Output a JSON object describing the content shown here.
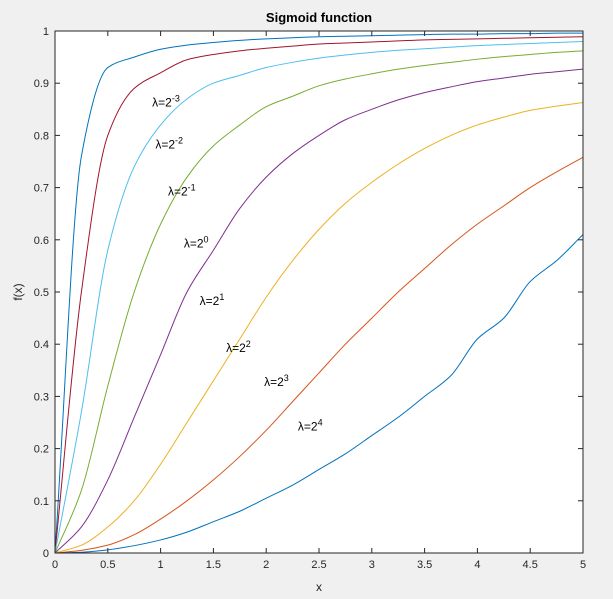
{
  "chart_data": {
    "type": "line",
    "title": "Sigmoid function",
    "xlabel": "x",
    "ylabel": "f(x)",
    "xlim": [
      0,
      5
    ],
    "ylim": [
      0,
      1
    ],
    "grid": false,
    "xticks": [
      "0",
      "0.5",
      "1",
      "1.5",
      "2",
      "2.5",
      "3",
      "3.5",
      "4",
      "4.5",
      "5"
    ],
    "yticks": [
      "0",
      "0.1",
      "0.2",
      "0.3",
      "0.4",
      "0.5",
      "0.6",
      "0.7",
      "0.8",
      "0.9",
      "1"
    ],
    "x": [
      0,
      0.25,
      0.5,
      0.75,
      1,
      1.25,
      1.5,
      1.75,
      2,
      2.25,
      2.5,
      2.75,
      3,
      3.25,
      3.5,
      3.75,
      4,
      4.25,
      4.5,
      4.75,
      5
    ],
    "series": [
      {
        "label_base": "λ=2",
        "label_exp": "-3",
        "color": "#0072BD",
        "values": [
          0,
          0.76,
          0.93,
          0.95,
          0.965,
          0.973,
          0.978,
          0.982,
          0.985,
          0.987,
          0.989,
          0.99,
          0.991,
          0.992,
          0.993,
          0.994,
          0.994,
          0.995,
          0.995,
          0.996,
          0.996
        ]
      },
      {
        "label_base": "λ=2",
        "label_exp": "-2",
        "color": "#A2142F",
        "values": [
          0,
          0.5,
          0.8,
          0.89,
          0.92,
          0.945,
          0.955,
          0.962,
          0.967,
          0.971,
          0.975,
          0.977,
          0.979,
          0.981,
          0.983,
          0.984,
          0.985,
          0.986,
          0.987,
          0.988,
          0.989
        ]
      },
      {
        "label_base": "λ=2",
        "label_exp": "-1",
        "color": "#4DBEEE",
        "values": [
          0,
          0.27,
          0.58,
          0.74,
          0.82,
          0.87,
          0.9,
          0.915,
          0.93,
          0.94,
          0.948,
          0.954,
          0.959,
          0.963,
          0.966,
          0.969,
          0.972,
          0.974,
          0.976,
          0.978,
          0.98
        ]
      },
      {
        "label_base": "λ=2",
        "label_exp": "0",
        "color": "#77AC30",
        "values": [
          0,
          0.12,
          0.32,
          0.5,
          0.63,
          0.72,
          0.78,
          0.82,
          0.855,
          0.875,
          0.895,
          0.908,
          0.918,
          0.927,
          0.934,
          0.94,
          0.946,
          0.951,
          0.955,
          0.959,
          0.962
        ]
      },
      {
        "label_base": "λ=2",
        "label_exp": "1",
        "color": "#7E2F8E",
        "values": [
          0,
          0.05,
          0.14,
          0.26,
          0.38,
          0.5,
          0.58,
          0.66,
          0.72,
          0.765,
          0.8,
          0.83,
          0.85,
          0.868,
          0.882,
          0.893,
          0.903,
          0.91,
          0.917,
          0.922,
          0.927
        ]
      },
      {
        "label_base": "λ=2",
        "label_exp": "2",
        "color": "#EDB120",
        "values": [
          0,
          0.015,
          0.05,
          0.1,
          0.17,
          0.25,
          0.33,
          0.41,
          0.49,
          0.56,
          0.62,
          0.67,
          0.71,
          0.745,
          0.775,
          0.8,
          0.82,
          0.835,
          0.848,
          0.856,
          0.863
        ]
      },
      {
        "label_base": "λ=2",
        "label_exp": "3",
        "color": "#D95319",
        "values": [
          0,
          0.005,
          0.015,
          0.035,
          0.065,
          0.1,
          0.14,
          0.185,
          0.235,
          0.29,
          0.345,
          0.4,
          0.45,
          0.5,
          0.545,
          0.59,
          0.63,
          0.665,
          0.7,
          0.73,
          0.758
        ]
      },
      {
        "label_base": "λ=2",
        "label_exp": "4",
        "color": "#0072BD",
        "values": [
          0,
          0.0015,
          0.006,
          0.014,
          0.025,
          0.04,
          0.06,
          0.08,
          0.105,
          0.13,
          0.16,
          0.19,
          0.225,
          0.26,
          0.3,
          0.34,
          0.41,
          0.45,
          0.52,
          0.56,
          0.61
        ]
      }
    ],
    "curve_labels": [
      {
        "series": 0,
        "x": 0.92,
        "y": 0.855
      },
      {
        "series": 1,
        "x": 0.95,
        "y": 0.775
      },
      {
        "series": 2,
        "x": 1.07,
        "y": 0.685
      },
      {
        "series": 3,
        "x": 1.22,
        "y": 0.585
      },
      {
        "series": 4,
        "x": 1.37,
        "y": 0.475
      },
      {
        "series": 5,
        "x": 1.62,
        "y": 0.385
      },
      {
        "series": 6,
        "x": 1.98,
        "y": 0.32
      },
      {
        "series": 7,
        "x": 2.3,
        "y": 0.235
      }
    ]
  }
}
